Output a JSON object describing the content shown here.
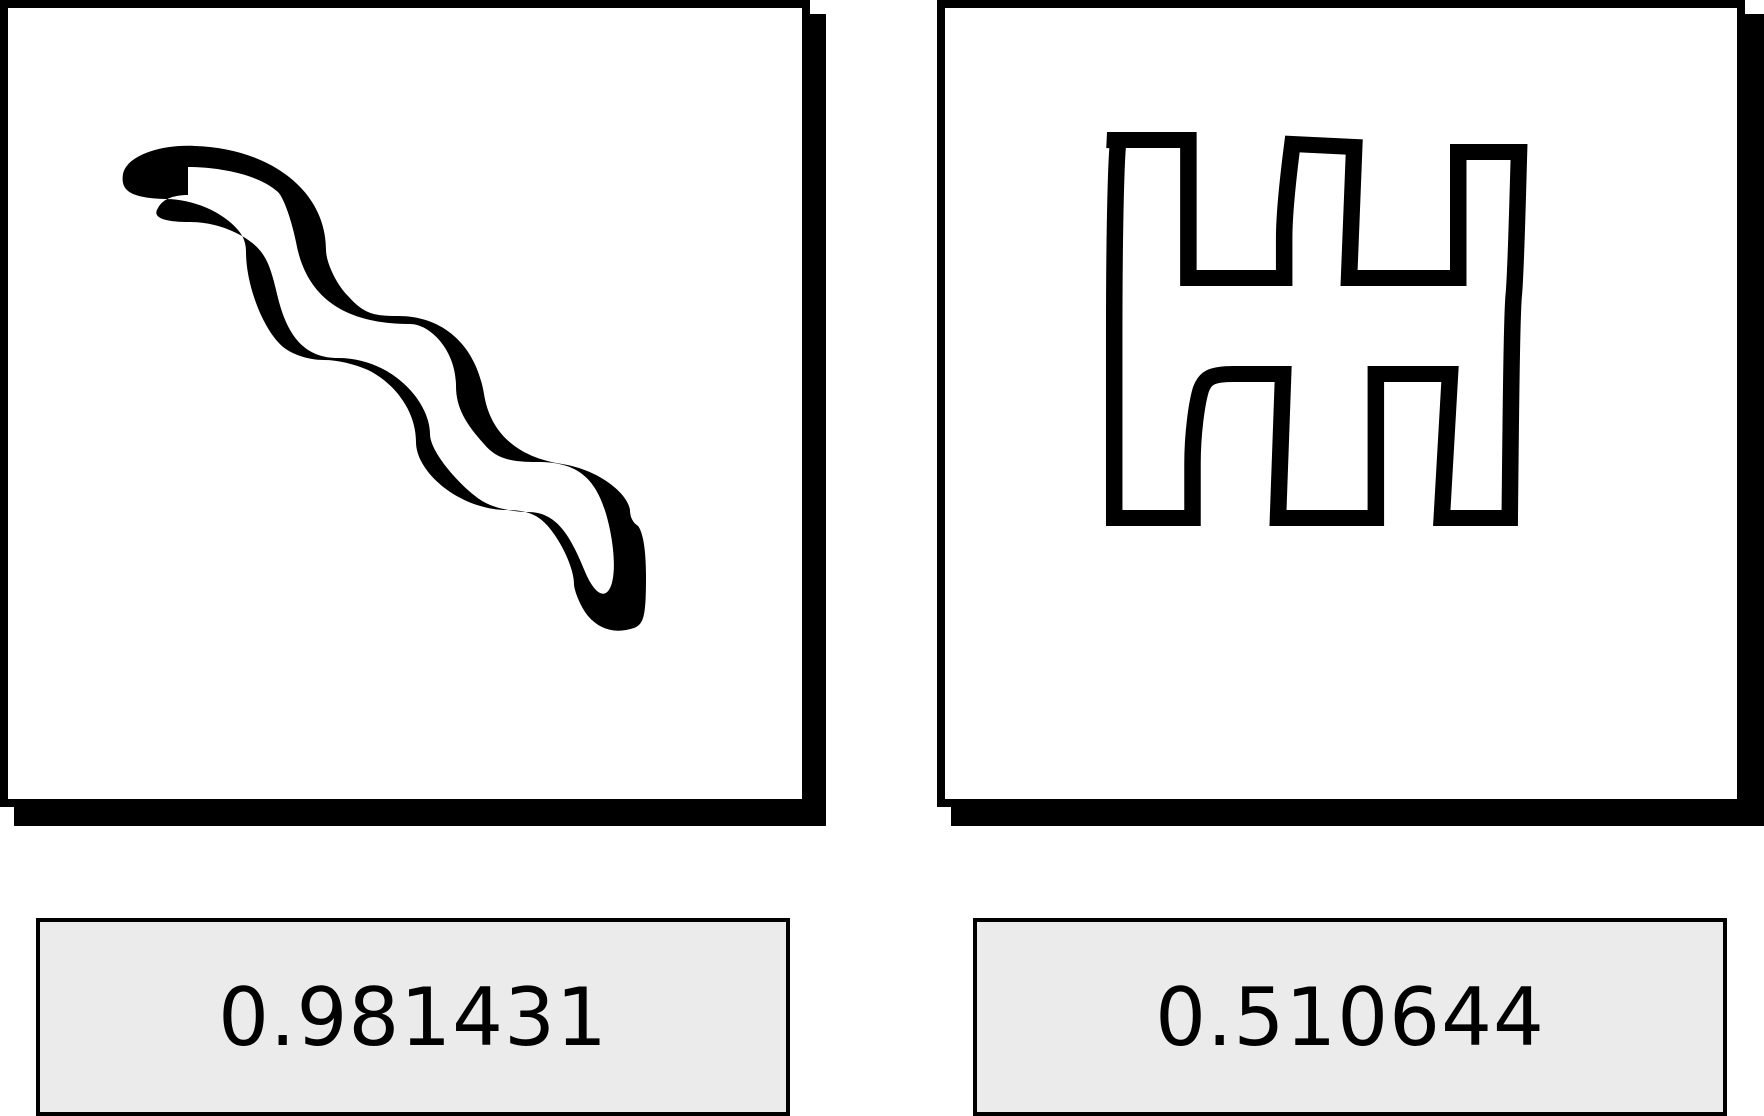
{
  "tiles": [
    {
      "shape_icon": "squiggle-icon",
      "score": "0.981431"
    },
    {
      "shape_icon": "castle-h-icon",
      "score": "0.510644"
    }
  ],
  "colors": {
    "border": "#000000",
    "tile_background": "#ffffff",
    "score_background": "#ebebeb"
  }
}
